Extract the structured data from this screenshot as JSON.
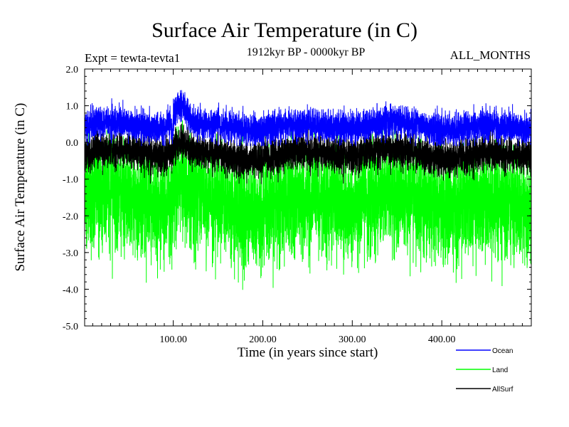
{
  "chart_data": {
    "type": "line",
    "title": "Surface Air Temperature (in C)",
    "subtitle": "1912kyr BP - 0000kyr BP",
    "experiment": "Expt = tewta-tevta1",
    "season": "ALL_MONTHS",
    "xlabel": "Time (in years since start)",
    "ylabel": "Surface Air Temperature (in C)",
    "xlim": [
      1,
      500
    ],
    "ylim": [
      -5.0,
      2.0
    ],
    "x_ticks": [
      100,
      200,
      300,
      400
    ],
    "x_tick_labels": [
      "100.00",
      "200.00",
      "300.00",
      "400.00"
    ],
    "y_ticks": [
      2.0,
      1.0,
      0.0,
      -1.0,
      -2.0,
      -3.0,
      -4.0,
      -5.0
    ],
    "y_tick_labels": [
      "2.0",
      "1.0",
      "0.0",
      "-1.0",
      "-2.0",
      "-3.0",
      "-4.0",
      "-5.0"
    ],
    "series": [
      {
        "name": "Land",
        "color": "#00ff00",
        "mean": -1.6,
        "min_approx": -4.1,
        "max_approx": 0.6
      },
      {
        "name": "AllSurf",
        "color": "#000000",
        "mean": -0.3,
        "min_approx": -1.4,
        "max_approx": 0.5
      },
      {
        "name": "Ocean",
        "color": "#0000ff",
        "mean": 0.45,
        "min_approx": -0.1,
        "max_approx": 1.6
      }
    ],
    "legend": [
      {
        "name": "Ocean",
        "color": "#0000ff"
      },
      {
        "name": "Land",
        "color": "#00ff00"
      },
      {
        "name": "AllSurf",
        "color": "#000000"
      }
    ]
  }
}
